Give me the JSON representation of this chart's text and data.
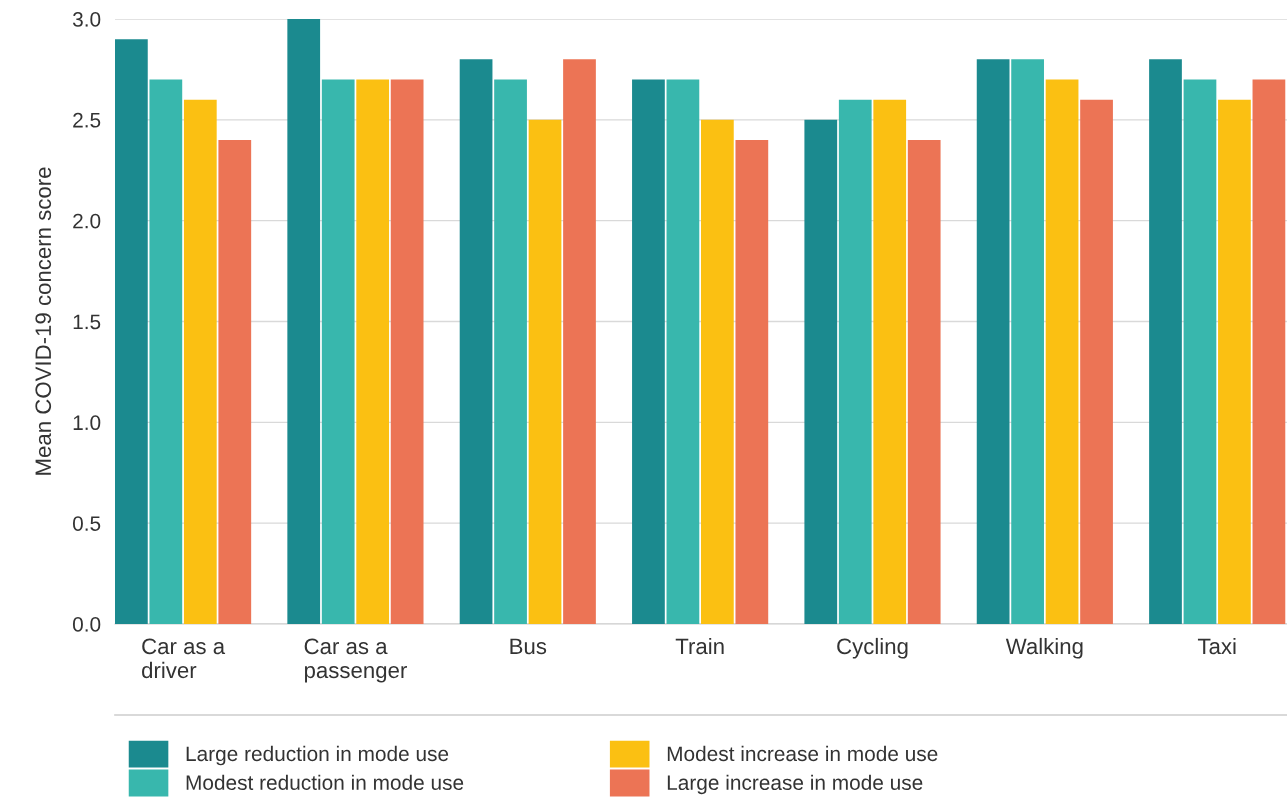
{
  "chart_data": {
    "type": "bar",
    "ylabel": "Mean COVID-19 concern score",
    "categories": [
      "Car as a\ndriver",
      "Car as a\npassenger",
      "Bus",
      "Train",
      "Cycling",
      "Walking",
      "Taxi"
    ],
    "series": [
      {
        "name": "Large reduction in mode use",
        "color": "#1b8a8f",
        "values": [
          2.9,
          3.0,
          2.8,
          2.7,
          2.5,
          2.8,
          2.8
        ]
      },
      {
        "name": "Modest reduction in mode use",
        "color": "#38b7ad",
        "values": [
          2.7,
          2.7,
          2.7,
          2.7,
          2.6,
          2.8,
          2.7
        ]
      },
      {
        "name": "Modest increase in mode use",
        "color": "#fbc012",
        "values": [
          2.6,
          2.7,
          2.5,
          2.5,
          2.6,
          2.7,
          2.6
        ]
      },
      {
        "name": "Large increase in mode use",
        "color": "#ec7455",
        "values": [
          2.4,
          2.7,
          2.8,
          2.4,
          2.4,
          2.6,
          2.7
        ]
      }
    ],
    "ylim": [
      0,
      3.0
    ],
    "yticks": [
      {
        "value": 0,
        "label": "0.0"
      },
      0.5,
      {
        "value": 1,
        "label": "1.0"
      },
      1.5,
      {
        "value": 2,
        "label": "2.0"
      },
      2.5,
      {
        "value": 3,
        "label": "3.0"
      }
    ],
    "grid": "y",
    "legend": "bottom"
  }
}
